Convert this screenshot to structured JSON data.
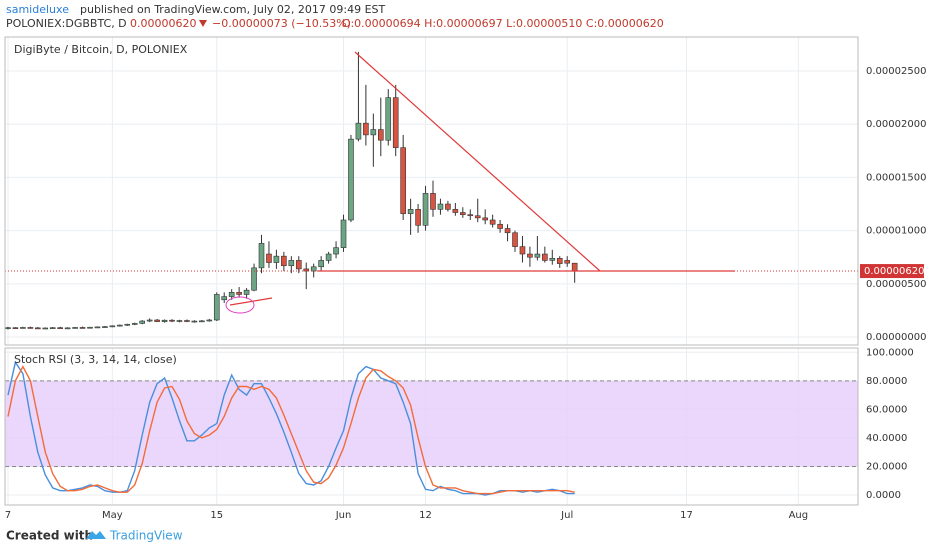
{
  "header": {
    "author": "samideluxe",
    "published": "published on TradingView.com, July 02, 2017 09:49 EST",
    "symbol": "POLONIEX:DGBBTC, D",
    "price": "0.00000620",
    "change": "−0.00000073 (−10.53%)",
    "ohlc": "O:0.00000694 H:0.00000697 L:0.00000510 C:0.00000620"
  },
  "footer": {
    "created": "Created with",
    "brand": "TradingView"
  },
  "chart_data": [
    {
      "type": "candlestick",
      "title": "DigiByte / Bitcoin, D, POLONIEX",
      "up_color": "#6ba583",
      "down_color": "#d75442",
      "open": [
        8e-07,
        8.8e-07,
        8.4e-07,
        9e-07,
        8.6e-07,
        8.2e-07,
        8.5e-07,
        8.8e-07,
        8.4e-07,
        8.6e-07,
        9e-07,
        8.7e-07,
        9.2e-07,
        9.5e-07,
        9.8e-07,
        1.05e-06,
        1.12e-06,
        1.2e-06,
        1.28e-06,
        1.5e-06,
        1.6e-06,
        1.45e-06,
        1.58e-06,
        1.5e-06,
        1.55e-06,
        1.48e-06,
        1.5e-06,
        1.52e-06,
        1.6e-06,
        3.5e-06,
        3.8e-06,
        4.2e-06,
        4e-06,
        4.4e-06,
        6.5e-06,
        7.8e-06,
        7e-06,
        7.6e-06,
        6.7e-06,
        7.2e-06,
        6.4e-06,
        6.2e-06,
        6.6e-06,
        7.2e-06,
        7.8e-06,
        8.4e-06,
        1.1e-05,
        1.86e-05,
        2.01e-05,
        1.9e-05,
        1.95e-05,
        1.85e-05,
        2.25e-05,
        1.78e-05,
        1.16e-05,
        1.2e-05,
        1.05e-05,
        1.35e-05,
        1.2e-05,
        1.25e-05,
        1.2e-05,
        1.17e-05,
        1.15e-05,
        1.14e-05,
        1.12e-05,
        1.1e-05,
        1.06e-05,
        1.02e-05,
        9.8e-06,
        8.5e-06,
        7.8e-06,
        7.5e-06,
        7.8e-06,
        7.2e-06,
        7.4e-06,
        7.2e-06,
        6.94e-06
      ],
      "high": [
        9.5e-07,
        9.2e-07,
        9.6e-07,
        9.8e-07,
        9.4e-07,
        9e-07,
        9.3e-07,
        9.6e-07,
        9.2e-07,
        9.5e-07,
        9.8e-07,
        9.6e-07,
        1e-06,
        1.04e-06,
        1.1e-06,
        1.18e-06,
        1.25e-06,
        1.35e-06,
        1.6e-06,
        1.75e-06,
        1.7e-06,
        1.65e-06,
        1.68e-06,
        1.62e-06,
        1.65e-06,
        1.58e-06,
        1.6e-06,
        1.7e-06,
        4.2e-06,
        4.2e-06,
        4.5e-06,
        4.7e-06,
        4.6e-06,
        6.9e-06,
        9.6e-06,
        9e-06,
        8.2e-06,
        8e-06,
        7.6e-06,
        7.6e-06,
        7e-06,
        6.9e-06,
        7.6e-06,
        8e-06,
        9e-06,
        1.15e-05,
        1.9e-05,
        2.68e-05,
        2.37e-05,
        2.1e-05,
        2.25e-05,
        2.33e-05,
        2.37e-05,
        1.9e-05,
        1.3e-05,
        1.25e-05,
        1.42e-05,
        1.47e-05,
        1.3e-05,
        1.28e-05,
        1.26e-05,
        1.22e-05,
        1.2e-05,
        1.3e-05,
        1.2e-05,
        1.15e-05,
        1.1e-05,
        1.06e-05,
        1e-05,
        9.5e-06,
        8.5e-06,
        9.5e-06,
        8.5e-06,
        8.2e-06,
        7.6e-06,
        7.6e-06,
        6.97e-06
      ],
      "low": [
        7e-07,
        7.8e-07,
        8e-07,
        8.2e-07,
        7.6e-07,
        7.4e-07,
        8e-07,
        8.2e-07,
        7.8e-07,
        8e-07,
        8.4e-07,
        8e-07,
        8.6e-07,
        8.8e-07,
        9.2e-07,
        9.8e-07,
        1.04e-06,
        1.12e-06,
        1.2e-06,
        1.4e-06,
        1.4e-06,
        1.35e-06,
        1.4e-06,
        1.38e-06,
        1.4e-06,
        1.35e-06,
        1.4e-06,
        1.45e-06,
        1.5e-06,
        3.2e-06,
        3.5e-06,
        3.7e-06,
        3.6e-06,
        4.3e-06,
        6e-06,
        6.5e-06,
        6.4e-06,
        6.2e-06,
        6e-06,
        6e-06,
        4.5e-06,
        5.6e-06,
        6.2e-06,
        6.9e-06,
        7.4e-06,
        8e-06,
        1.08e-05,
        1.84e-05,
        1.8e-05,
        1.6e-05,
        1.7e-05,
        1.8e-05,
        1.7e-05,
        1.1e-05,
        9.6e-06,
        9.8e-06,
        1e-05,
        1.13e-05,
        1.15e-05,
        1.18e-05,
        1.14e-05,
        1.12e-05,
        1.1e-05,
        1.08e-05,
        1.06e-05,
        1.03e-05,
        9.8e-06,
        9e-06,
        8e-06,
        7e-06,
        6.6e-06,
        7.2e-06,
        7e-06,
        6.8e-06,
        6.5e-06,
        6.6e-06,
        5.1e-06
      ],
      "close": [
        8.8e-07,
        8.4e-07,
        9e-07,
        8.6e-07,
        8.2e-07,
        8.5e-07,
        8.8e-07,
        8.4e-07,
        8.6e-07,
        9e-07,
        8.7e-07,
        9.2e-07,
        9.5e-07,
        9.8e-07,
        1.05e-06,
        1.12e-06,
        1.2e-06,
        1.28e-06,
        1.5e-06,
        1.6e-06,
        1.45e-06,
        1.58e-06,
        1.5e-06,
        1.55e-06,
        1.48e-06,
        1.5e-06,
        1.52e-06,
        1.6e-06,
        4e-06,
        3.8e-06,
        4.2e-06,
        4e-06,
        4.4e-06,
        6.5e-06,
        8.8e-06,
        7e-06,
        7.6e-06,
        6.7e-06,
        7.2e-06,
        6.4e-06,
        6.2e-06,
        6.6e-06,
        7.2e-06,
        7.8e-06,
        8.4e-06,
        1.1e-05,
        1.86e-05,
        2.01e-05,
        1.9e-05,
        1.95e-05,
        1.85e-05,
        2.25e-05,
        1.78e-05,
        1.16e-05,
        1.2e-05,
        1.05e-05,
        1.35e-05,
        1.2e-05,
        1.25e-05,
        1.2e-05,
        1.17e-05,
        1.15e-05,
        1.14e-05,
        1.12e-05,
        1.1e-05,
        1.06e-05,
        1.02e-05,
        9.8e-06,
        8.5e-06,
        7.8e-06,
        7.5e-06,
        7.8e-06,
        7.2e-06,
        7.4e-06,
        6.9e-06,
        6.94e-06,
        6.2e-06
      ],
      "last_price": {
        "value": 6.2e-06,
        "label": "0.00000620"
      },
      "xlim": [
        -0.4,
        114
      ],
      "ylim": [
        -7.5e-07,
        2.82e-05
      ],
      "yticks": [
        {
          "value": 0,
          "label": "0.00000000"
        },
        {
          "value": 5e-06,
          "label": "0.00000500"
        },
        {
          "value": 1e-05,
          "label": "0.00001000"
        },
        {
          "value": 1.5e-05,
          "label": "0.00001500"
        },
        {
          "value": 2e-05,
          "label": "0.00002000"
        },
        {
          "value": 2.5e-05,
          "label": "0.00002500"
        }
      ],
      "grid": true
    },
    {
      "type": "line",
      "title": "Stoch RSI (3, 3, 14, 14, close)",
      "band": [
        20,
        80
      ],
      "band_color": "#e6cdfa",
      "series": [
        {
          "color": "#4a8fdc",
          "values": [
            70,
            93,
            85,
            55,
            30,
            14,
            5,
            3,
            3,
            4,
            5,
            7,
            6,
            3,
            2,
            2,
            3,
            17,
            42,
            65,
            78,
            82,
            68,
            52,
            38,
            38,
            42,
            47,
            50,
            70,
            84,
            74,
            70,
            78,
            78,
            68,
            57,
            44,
            30,
            15,
            8,
            7,
            10,
            20,
            33,
            45,
            68,
            85,
            90,
            88,
            82,
            80,
            78,
            65,
            50,
            15,
            4,
            3,
            6,
            4,
            3,
            1,
            1,
            1,
            0,
            1,
            3,
            3,
            3,
            2,
            3,
            2,
            3,
            4,
            3,
            1,
            1
          ]
        },
        {
          "color": "#f26b3a",
          "values": [
            55,
            80,
            90,
            80,
            55,
            30,
            15,
            6,
            3,
            3,
            4,
            6,
            7,
            5,
            3,
            2,
            2,
            7,
            22,
            45,
            65,
            75,
            76,
            67,
            52,
            43,
            40,
            42,
            46,
            55,
            68,
            76,
            76,
            74,
            76,
            74,
            68,
            56,
            43,
            30,
            17,
            9,
            8,
            12,
            21,
            33,
            50,
            68,
            82,
            88,
            87,
            83,
            80,
            75,
            63,
            40,
            20,
            7,
            5,
            5,
            5,
            3,
            2,
            1,
            1,
            1,
            2,
            3,
            3,
            3,
            3,
            3,
            3,
            3,
            3,
            3,
            2
          ]
        }
      ],
      "xlim": [
        -0.4,
        114
      ],
      "ylim": [
        -7,
        103
      ],
      "xticks": [
        {
          "value": 0,
          "label": "7"
        },
        {
          "value": 14,
          "label": "May"
        },
        {
          "value": 28,
          "label": "15"
        },
        {
          "value": 45,
          "label": "Jun"
        },
        {
          "value": 56,
          "label": "12"
        },
        {
          "value": 75,
          "label": "Jul"
        },
        {
          "value": 91,
          "label": "17"
        },
        {
          "value": 106,
          "label": "Aug"
        }
      ],
      "yticks": [
        {
          "value": 0,
          "label": "0.0000"
        },
        {
          "value": 20,
          "label": "20.0000"
        },
        {
          "value": 40,
          "label": "40.0000"
        },
        {
          "value": 60,
          "label": "60.0000"
        },
        {
          "value": 80,
          "label": "80.0000"
        },
        {
          "value": 100,
          "label": "100.0000"
        }
      ],
      "grid": true
    }
  ]
}
